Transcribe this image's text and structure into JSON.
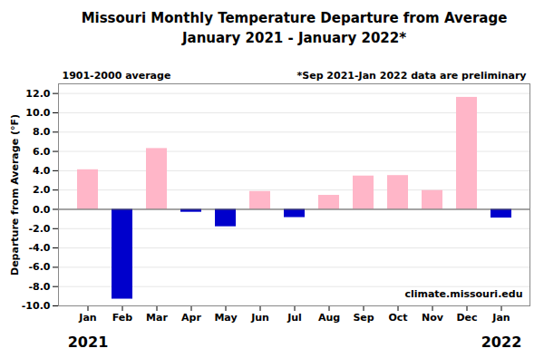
{
  "chart_data": {
    "type": "bar",
    "title": "Missouri Monthly Temperature Departure from Average",
    "subtitle": "January 2021 - January 2022*",
    "categories": [
      "Jan",
      "Feb",
      "Mar",
      "Apr",
      "May",
      "Jun",
      "Jul",
      "Aug",
      "Sep",
      "Oct",
      "Nov",
      "Dec",
      "Jan"
    ],
    "values": [
      4.1,
      -9.3,
      6.3,
      -0.3,
      -1.8,
      1.85,
      -0.85,
      1.45,
      3.45,
      3.5,
      1.95,
      11.6,
      -0.9
    ],
    "colors": [
      "#FFB6C8",
      "#0000CC",
      "#FFB6C8",
      "#0000CC",
      "#0000CC",
      "#FFB6C8",
      "#0000CC",
      "#FFB6C8",
      "#FFB6C8",
      "#FFB6C8",
      "#FFB6C8",
      "#FFB6C8",
      "#0000CC"
    ],
    "y_label": "Departure from Average (°F)",
    "ylim": [
      -10.0,
      13.0
    ],
    "yticks": [
      {
        "value": -10.0,
        "label": "-10.0"
      },
      {
        "value": -8.0,
        "label": "-8.0"
      },
      {
        "value": -6.0,
        "label": "-6.0"
      },
      {
        "value": -4.0,
        "label": "-4.0"
      },
      {
        "value": -2.0,
        "label": "-2.0"
      },
      {
        "value": 0.0,
        "label": "0.0"
      },
      {
        "value": 2.0,
        "label": "2.0"
      },
      {
        "value": 4.0,
        "label": "4.0"
      },
      {
        "value": 6.0,
        "label": "6.0"
      },
      {
        "value": 8.0,
        "label": "8.0"
      },
      {
        "value": 10.0,
        "label": "10.0"
      },
      {
        "value": 12.0,
        "label": "12.0"
      }
    ],
    "grid": true,
    "annotations": [
      {
        "text": "1901-2000 average"
      },
      {
        "text": "*Sep 2021-Jan 2022 data are preliminary"
      },
      {
        "text": "climate.missouri.edu"
      },
      {
        "text": "2021",
        "index": 0
      },
      {
        "text": "2022",
        "index": 12
      }
    ]
  }
}
